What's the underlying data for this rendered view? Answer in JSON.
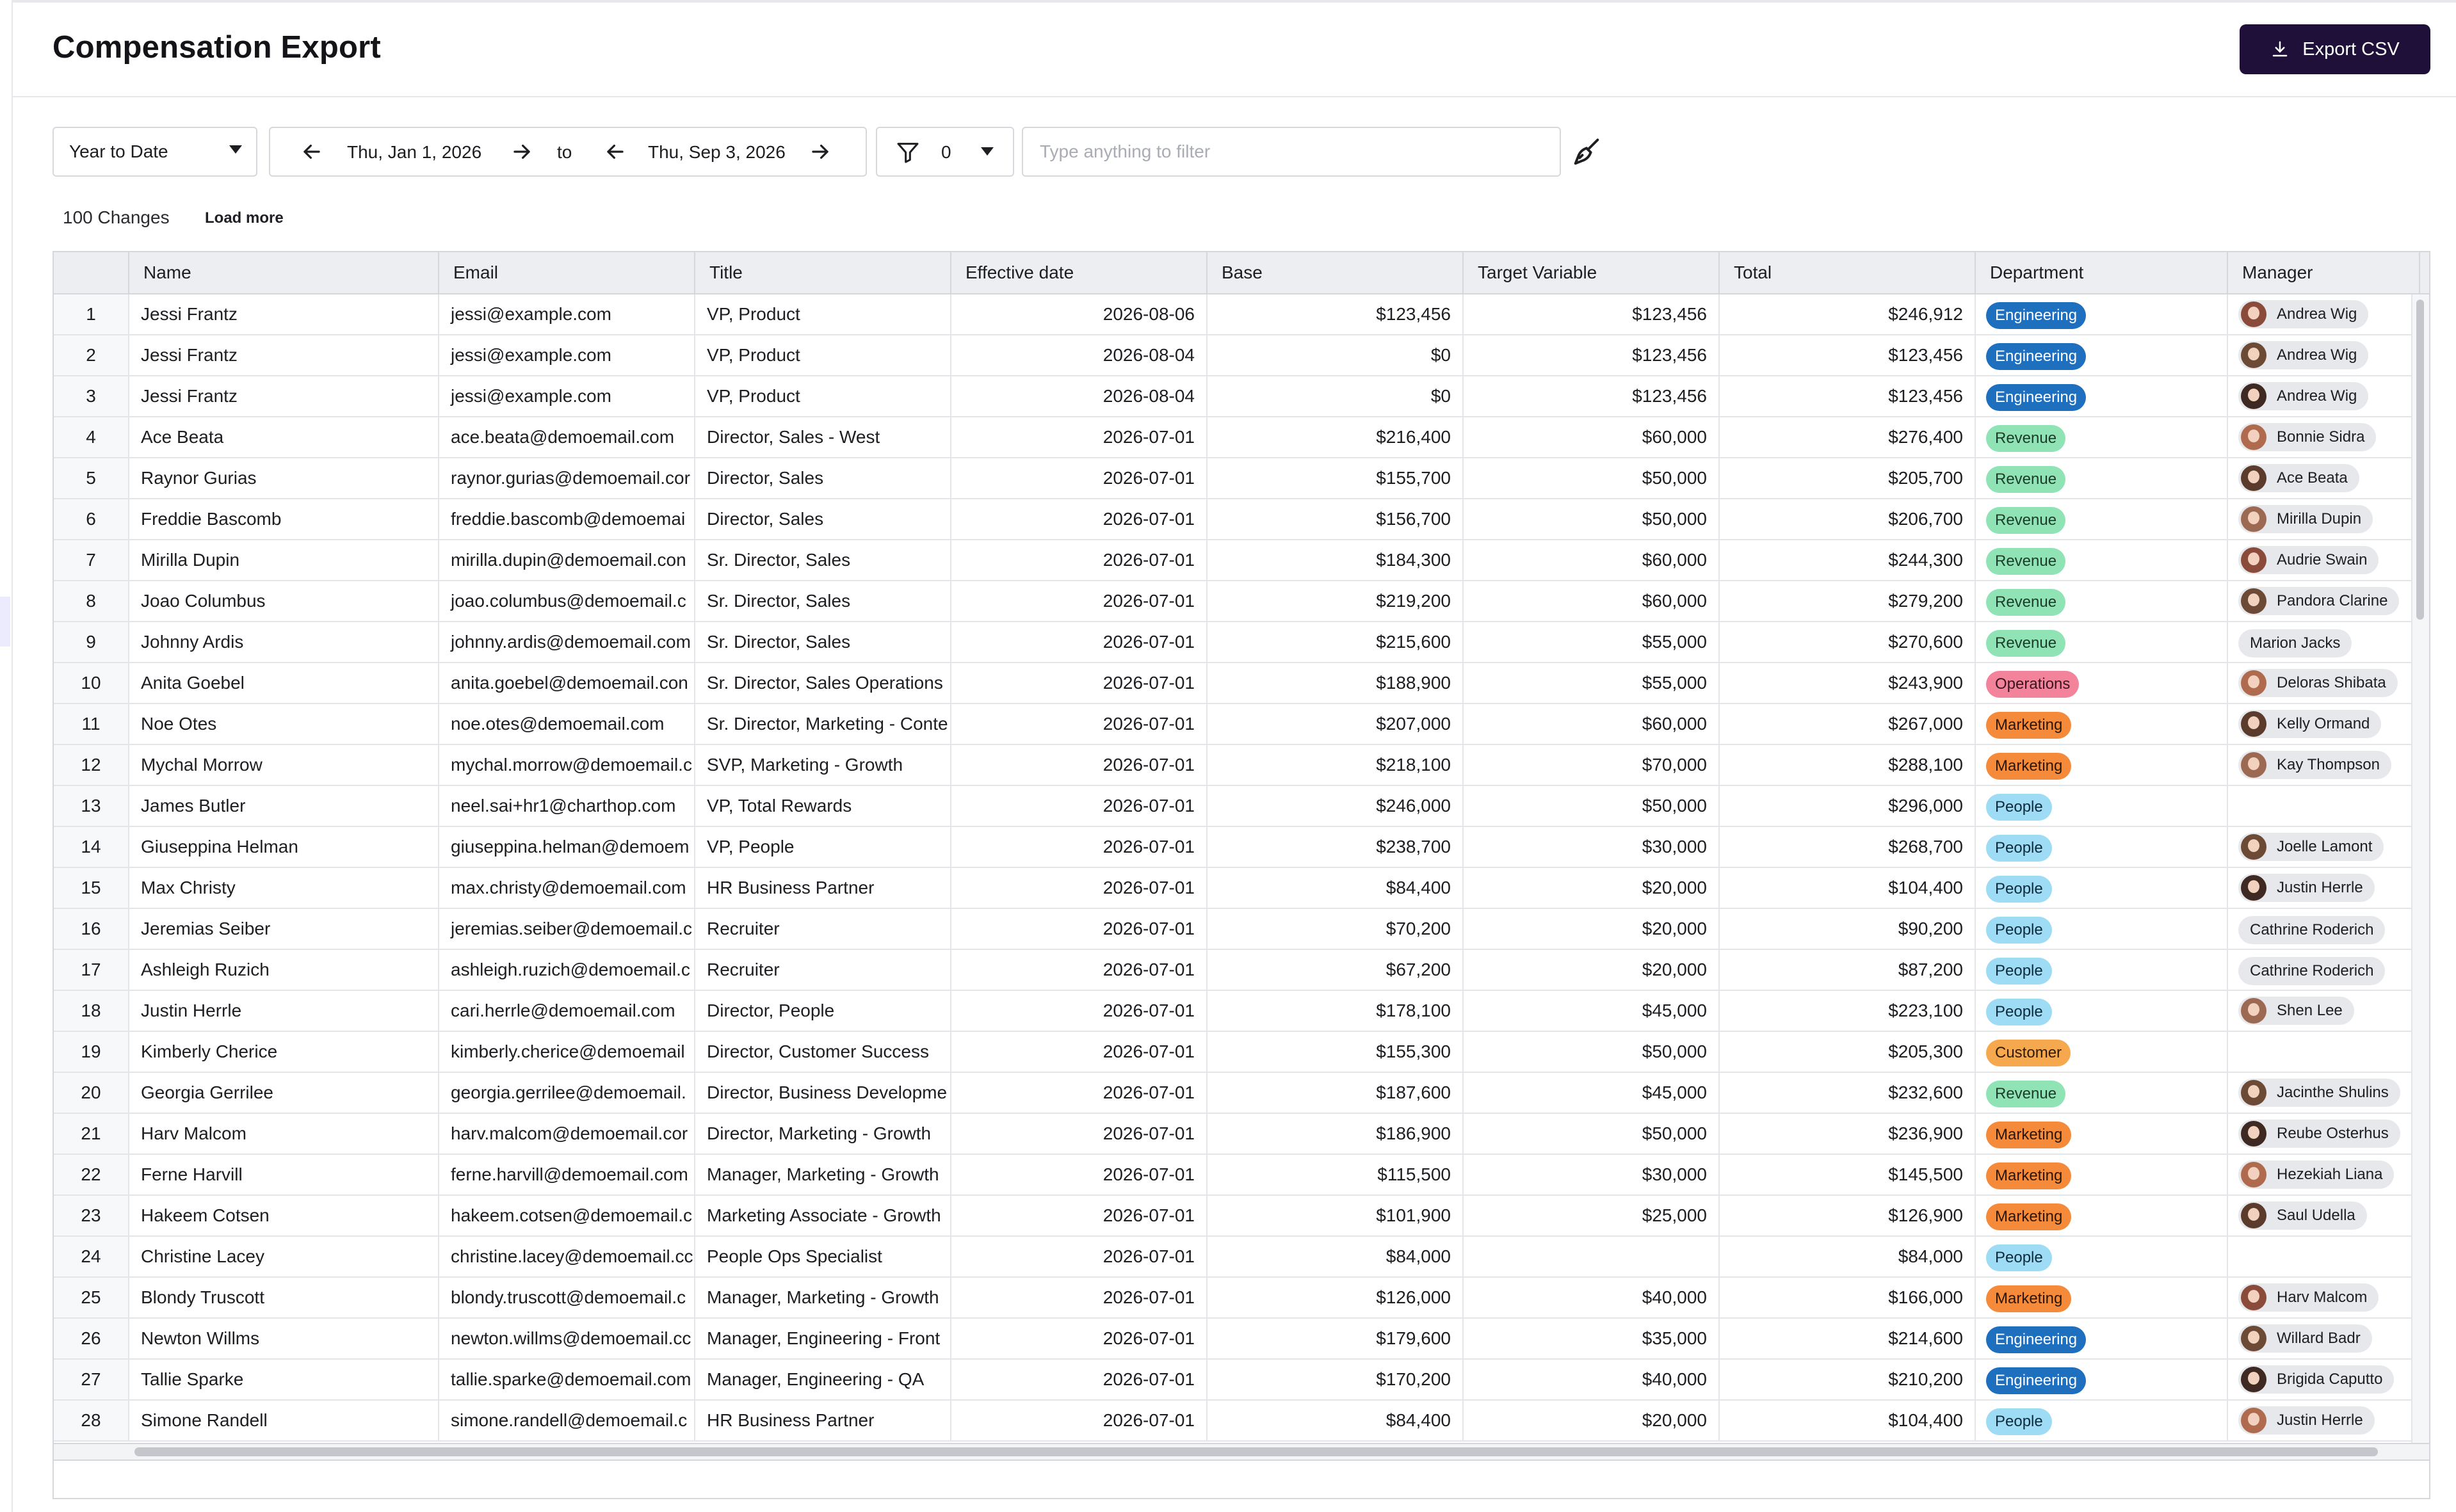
{
  "header": {
    "title": "Compensation Export",
    "export_label": "Export CSV"
  },
  "toolbar": {
    "range": "Year to Date",
    "start_date": "Thu, Jan 1, 2026",
    "to_label": "to",
    "end_date": "Thu, Sep 3, 2026",
    "filter_count": "0",
    "filter_placeholder": "Type anything to filter"
  },
  "summary": {
    "changes": "100 Changes",
    "load_more": "Load more"
  },
  "table": {
    "columns": [
      "Name",
      "Email",
      "Title",
      "Effective date",
      "Base",
      "Target Variable",
      "Total",
      "Department",
      "Manager"
    ],
    "rows": [
      {
        "n": "1",
        "name": "Jessi Frantz",
        "email": "jessi@example.com",
        "title": "VP, Product",
        "date": "2026-08-06",
        "base": "$123,456",
        "tv": "$123,456",
        "total": "$246,912",
        "dept": "Engineering",
        "mgr": "Andrea Wig",
        "avatar": true
      },
      {
        "n": "2",
        "name": "Jessi Frantz",
        "email": "jessi@example.com",
        "title": "VP, Product",
        "date": "2026-08-04",
        "base": "$0",
        "tv": "$123,456",
        "total": "$123,456",
        "dept": "Engineering",
        "mgr": "Andrea Wig",
        "avatar": true
      },
      {
        "n": "3",
        "name": "Jessi Frantz",
        "email": "jessi@example.com",
        "title": "VP, Product",
        "date": "2026-08-04",
        "base": "$0",
        "tv": "$123,456",
        "total": "$123,456",
        "dept": "Engineering",
        "mgr": "Andrea Wig",
        "avatar": true
      },
      {
        "n": "4",
        "name": "Ace Beata",
        "email": "ace.beata@demoemail.com",
        "title": "Director, Sales - West",
        "date": "2026-07-01",
        "base": "$216,400",
        "tv": "$60,000",
        "total": "$276,400",
        "dept": "Revenue",
        "mgr": "Bonnie Sidra",
        "avatar": true
      },
      {
        "n": "5",
        "name": "Raynor Gurias",
        "email": "raynor.gurias@demoemail.cor",
        "title": "Director, Sales",
        "date": "2026-07-01",
        "base": "$155,700",
        "tv": "$50,000",
        "total": "$205,700",
        "dept": "Revenue",
        "mgr": "Ace Beata",
        "avatar": true
      },
      {
        "n": "6",
        "name": "Freddie Bascomb",
        "email": "freddie.bascomb@demoemai",
        "title": "Director, Sales",
        "date": "2026-07-01",
        "base": "$156,700",
        "tv": "$50,000",
        "total": "$206,700",
        "dept": "Revenue",
        "mgr": "Mirilla Dupin",
        "avatar": true
      },
      {
        "n": "7",
        "name": "Mirilla Dupin",
        "email": "mirilla.dupin@demoemail.con",
        "title": "Sr. Director, Sales",
        "date": "2026-07-01",
        "base": "$184,300",
        "tv": "$60,000",
        "total": "$244,300",
        "dept": "Revenue",
        "mgr": "Audrie Swain",
        "avatar": true
      },
      {
        "n": "8",
        "name": "Joao Columbus",
        "email": "joao.columbus@demoemail.c",
        "title": "Sr. Director, Sales",
        "date": "2026-07-01",
        "base": "$219,200",
        "tv": "$60,000",
        "total": "$279,200",
        "dept": "Revenue",
        "mgr": "Pandora Clarine",
        "avatar": true
      },
      {
        "n": "9",
        "name": "Johnny Ardis",
        "email": "johnny.ardis@demoemail.com",
        "title": "Sr. Director, Sales",
        "date": "2026-07-01",
        "base": "$215,600",
        "tv": "$55,000",
        "total": "$270,600",
        "dept": "Revenue",
        "mgr": "Marion Jacks",
        "avatar": false
      },
      {
        "n": "10",
        "name": "Anita Goebel",
        "email": "anita.goebel@demoemail.con",
        "title": "Sr. Director, Sales Operations",
        "date": "2026-07-01",
        "base": "$188,900",
        "tv": "$55,000",
        "total": "$243,900",
        "dept": "Operations",
        "mgr": "Deloras Shibata",
        "avatar": true
      },
      {
        "n": "11",
        "name": "Noe Otes",
        "email": "noe.otes@demoemail.com",
        "title": "Sr. Director, Marketing - Conte",
        "date": "2026-07-01",
        "base": "$207,000",
        "tv": "$60,000",
        "total": "$267,000",
        "dept": "Marketing",
        "mgr": "Kelly Ormand",
        "avatar": true
      },
      {
        "n": "12",
        "name": "Mychal Morrow",
        "email": "mychal.morrow@demoemail.c",
        "title": "SVP, Marketing - Growth",
        "date": "2026-07-01",
        "base": "$218,100",
        "tv": "$70,000",
        "total": "$288,100",
        "dept": "Marketing",
        "mgr": "Kay Thompson",
        "avatar": true
      },
      {
        "n": "13",
        "name": "James Butler",
        "email": "neel.sai+hr1@charthop.com",
        "title": "VP, Total Rewards",
        "date": "2026-07-01",
        "base": "$246,000",
        "tv": "$50,000",
        "total": "$296,000",
        "dept": "People",
        "mgr": "",
        "avatar": false
      },
      {
        "n": "14",
        "name": "Giuseppina Helman",
        "email": "giuseppina.helman@demoem",
        "title": "VP, People",
        "date": "2026-07-01",
        "base": "$238,700",
        "tv": "$30,000",
        "total": "$268,700",
        "dept": "People",
        "mgr": "Joelle Lamont",
        "avatar": true
      },
      {
        "n": "15",
        "name": "Max Christy",
        "email": "max.christy@demoemail.com",
        "title": "HR Business Partner",
        "date": "2026-07-01",
        "base": "$84,400",
        "tv": "$20,000",
        "total": "$104,400",
        "dept": "People",
        "mgr": "Justin Herrle",
        "avatar": true
      },
      {
        "n": "16",
        "name": "Jeremias Seiber",
        "email": "jeremias.seiber@demoemail.c",
        "title": "Recruiter",
        "date": "2026-07-01",
        "base": "$70,200",
        "tv": "$20,000",
        "total": "$90,200",
        "dept": "People",
        "mgr": "Cathrine Roderich",
        "avatar": false
      },
      {
        "n": "17",
        "name": "Ashleigh Ruzich",
        "email": "ashleigh.ruzich@demoemail.c",
        "title": "Recruiter",
        "date": "2026-07-01",
        "base": "$67,200",
        "tv": "$20,000",
        "total": "$87,200",
        "dept": "People",
        "mgr": "Cathrine Roderich",
        "avatar": false
      },
      {
        "n": "18",
        "name": "Justin Herrle",
        "email": "cari.herrle@demoemail.com",
        "title": "Director, People",
        "date": "2026-07-01",
        "base": "$178,100",
        "tv": "$45,000",
        "total": "$223,100",
        "dept": "People",
        "mgr": "Shen Lee",
        "avatar": true
      },
      {
        "n": "19",
        "name": "Kimberly Cherice",
        "email": "kimberly.cherice@demoemail",
        "title": "Director, Customer Success",
        "date": "2026-07-01",
        "base": "$155,300",
        "tv": "$50,000",
        "total": "$205,300",
        "dept": "Customer",
        "mgr": "",
        "avatar": false
      },
      {
        "n": "20",
        "name": "Georgia Gerrilee",
        "email": "georgia.gerrilee@demoemail.",
        "title": "Director, Business Developme",
        "date": "2026-07-01",
        "base": "$187,600",
        "tv": "$45,000",
        "total": "$232,600",
        "dept": "Revenue",
        "mgr": "Jacinthe Shulins",
        "avatar": true
      },
      {
        "n": "21",
        "name": "Harv Malcom",
        "email": "harv.malcom@demoemail.cor",
        "title": "Director, Marketing - Growth",
        "date": "2026-07-01",
        "base": "$186,900",
        "tv": "$50,000",
        "total": "$236,900",
        "dept": "Marketing",
        "mgr": "Reube Osterhus",
        "avatar": true
      },
      {
        "n": "22",
        "name": "Ferne Harvill",
        "email": "ferne.harvill@demoemail.com",
        "title": "Manager, Marketing - Growth",
        "date": "2026-07-01",
        "base": "$115,500",
        "tv": "$30,000",
        "total": "$145,500",
        "dept": "Marketing",
        "mgr": "Hezekiah Liana",
        "avatar": true
      },
      {
        "n": "23",
        "name": "Hakeem Cotsen",
        "email": "hakeem.cotsen@demoemail.c",
        "title": "Marketing Associate - Growth",
        "date": "2026-07-01",
        "base": "$101,900",
        "tv": "$25,000",
        "total": "$126,900",
        "dept": "Marketing",
        "mgr": "Saul Udella",
        "avatar": true
      },
      {
        "n": "24",
        "name": "Christine Lacey",
        "email": "christine.lacey@demoemail.cc",
        "title": "People Ops Specialist",
        "date": "2026-07-01",
        "base": "$84,000",
        "tv": "",
        "total": "$84,000",
        "dept": "People",
        "mgr": "",
        "avatar": false
      },
      {
        "n": "25",
        "name": "Blondy Truscott",
        "email": "blondy.truscott@demoemail.c",
        "title": "Manager, Marketing - Growth",
        "date": "2026-07-01",
        "base": "$126,000",
        "tv": "$40,000",
        "total": "$166,000",
        "dept": "Marketing",
        "mgr": "Harv Malcom",
        "avatar": true
      },
      {
        "n": "26",
        "name": "Newton Willms",
        "email": "newton.willms@demoemail.cc",
        "title": "Manager, Engineering - Front",
        "date": "2026-07-01",
        "base": "$179,600",
        "tv": "$35,000",
        "total": "$214,600",
        "dept": "Engineering",
        "mgr": "Willard Badr",
        "avatar": true
      },
      {
        "n": "27",
        "name": "Tallie Sparke",
        "email": "tallie.sparke@demoemail.com",
        "title": "Manager, Engineering - QA",
        "date": "2026-07-01",
        "base": "$170,200",
        "tv": "$40,000",
        "total": "$210,200",
        "dept": "Engineering",
        "mgr": "Brigida Caputto",
        "avatar": true
      },
      {
        "n": "28",
        "name": "Simone Randell",
        "email": "simone.randell@demoemail.c",
        "title": "HR Business Partner",
        "date": "2026-07-01",
        "base": "$84,400",
        "tv": "$20,000",
        "total": "$104,400",
        "dept": "People",
        "mgr": "Justin Herrle",
        "avatar": true
      }
    ]
  },
  "department_colors": {
    "Engineering": {
      "bg": "#1f6fbf",
      "fg": "#ffffff"
    },
    "Revenue": {
      "bg": "#8fe3b4",
      "fg": "#1d3b2a"
    },
    "Operations": {
      "bg": "#f2839a",
      "fg": "#3a1520"
    },
    "Marketing": {
      "bg": "#f58a3a",
      "fg": "#2b1606"
    },
    "People": {
      "bg": "#9edcf6",
      "fg": "#0e2a3a"
    },
    "Customer": {
      "bg": "#f6a84e",
      "fg": "#2e1a05"
    }
  },
  "avatar_colors": [
    "#8a4b3a",
    "#6d4a35",
    "#3e2a22",
    "#b06b4e",
    "#5a3b2c",
    "#9c6a52"
  ],
  "icons": {
    "export": "download-icon",
    "prev": "arrow-left-icon",
    "next": "arrow-right-icon",
    "filter": "funnel-icon",
    "clear": "broom-icon"
  }
}
